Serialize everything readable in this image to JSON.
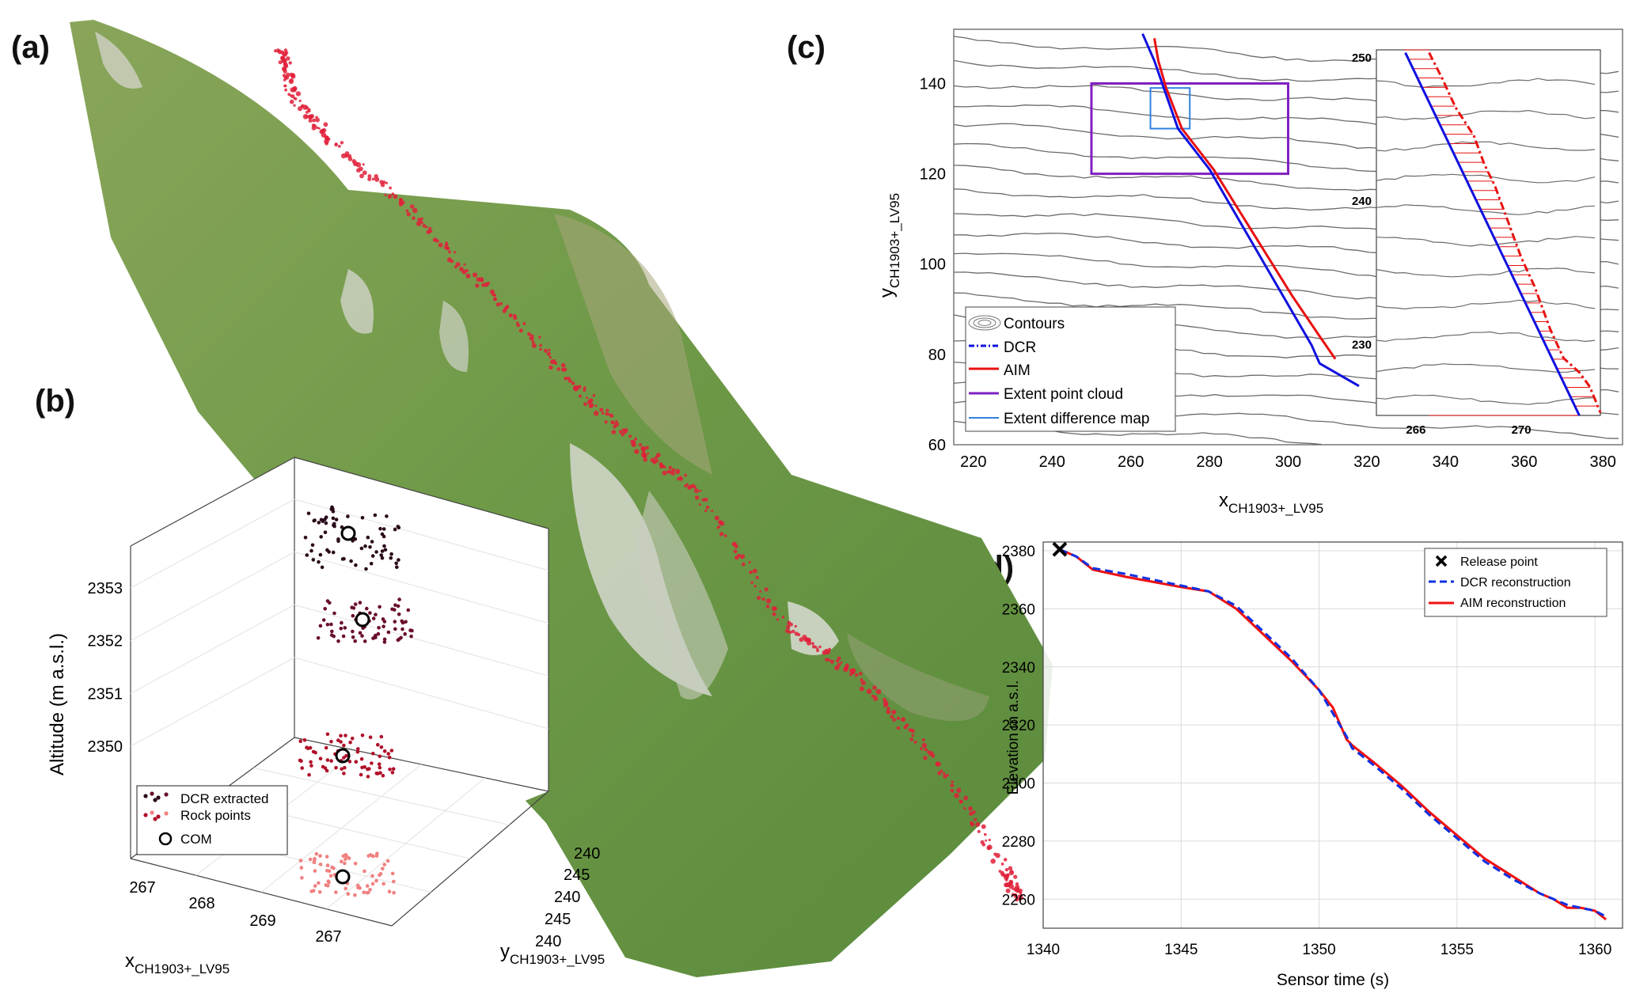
{
  "panels": {
    "a": "(a)",
    "b": "(b)",
    "c": "(c)",
    "d": "(d)"
  },
  "panel_a": {
    "image": "terrain-point-cloud-with-rock-trajectory",
    "trajectory_color": "#e0203a"
  },
  "chart_data": [
    {
      "id": "b",
      "type": "scatter",
      "title": "",
      "xlabel": "xCH1903+_LV95",
      "ylabel": "yCH1903+_LV95",
      "zlabel": "Altitude (m a.s.l.)",
      "x_ticks": [
        "267",
        "268",
        "269",
        "267"
      ],
      "y_ticks": [
        "240",
        "245",
        "240",
        "245",
        "240"
      ],
      "z_ticks": [
        2350,
        2351,
        2352,
        2353
      ],
      "legend": {
        "placement": "bottom-left",
        "entries": [
          "DCR extracted",
          "Rock points",
          "COM"
        ]
      },
      "series": [
        {
          "name": "DCR extracted",
          "colors": [
            "#2a0a1a",
            "#6a0f2a",
            "#b0102a",
            "#f08080"
          ]
        },
        {
          "name": "COM",
          "marker": "circle"
        }
      ],
      "clusters_altitude": [
        2353.3,
        2352.4,
        2350.6,
        2349.2
      ]
    },
    {
      "id": "c",
      "type": "line",
      "title": "",
      "xlabel": "xCH1903+_LV95",
      "ylabel": "yCH1903+_LV95",
      "xlim": [
        215,
        385
      ],
      "ylim": [
        60,
        152
      ],
      "x_ticks": [
        220,
        240,
        260,
        280,
        300,
        320,
        340,
        360,
        380
      ],
      "y_ticks": [
        60,
        80,
        100,
        120,
        140
      ],
      "legend": {
        "placement": "bottom-left",
        "entries": [
          "Contours",
          "DCR",
          "AIM",
          "Extent point cloud",
          "Extent difference map"
        ]
      },
      "series": [
        {
          "name": "DCR",
          "color": "#1010e0",
          "x": [
            263,
            266,
            268,
            272,
            280,
            290,
            300,
            306,
            308,
            318
          ],
          "y": [
            151,
            145,
            140,
            130,
            121,
            106,
            91,
            82,
            78,
            73
          ]
        },
        {
          "name": "AIM",
          "color": "#e81010",
          "x": [
            266,
            267,
            269,
            273,
            281,
            291,
            301,
            308,
            312
          ],
          "y": [
            150,
            145,
            139,
            130,
            121,
            107,
            93,
            84,
            79
          ]
        }
      ],
      "extent_point_cloud": {
        "x": [
          250,
          300
        ],
        "y": [
          120,
          140
        ],
        "color": "#8020c0"
      },
      "extent_difference_map": {
        "x": [
          265,
          275
        ],
        "y": [
          130,
          139
        ],
        "color": "#3080e0"
      },
      "inset": {
        "xlim": [
          264.5,
          273
        ],
        "ylim": [
          225,
          250.5
        ],
        "x_ticks": [
          266,
          270
        ],
        "y_ticks": [
          230,
          240,
          250
        ],
        "series": [
          {
            "name": "DCR",
            "color": "#1010e0",
            "x": [
              265.6,
              272.2
            ],
            "y": [
              250.3,
              225
            ]
          },
          {
            "name": "AIM",
            "color": "#e81010",
            "x": [
              266.5,
              267.0,
              267.5,
              268.2,
              268.6,
              269.0,
              269.5,
              270.0,
              270.5,
              271.1,
              271.6,
              272.2,
              272.6,
              273.0
            ],
            "y": [
              250.3,
              248.5,
              246.5,
              244.5,
              242.5,
              241.0,
              238.5,
              236.0,
              234.0,
              231.0,
              229.0,
              228.0,
              227.0,
              225.2
            ]
          }
        ]
      }
    },
    {
      "id": "d",
      "type": "line",
      "title": "",
      "xlabel": "Sensor time (s)",
      "ylabel": "Elevation m a.s.l.",
      "xlim": [
        1340,
        1361
      ],
      "ylim": [
        2250,
        2383
      ],
      "x_ticks": [
        1340,
        1345,
        1350,
        1355,
        1360
      ],
      "y_ticks": [
        2260,
        2280,
        2300,
        2320,
        2340,
        2360,
        2380
      ],
      "grid": true,
      "legend": {
        "placement": "top-right",
        "entries": [
          "Release point",
          "DCR reconstruction",
          "AIM reconstruction"
        ]
      },
      "release_point": {
        "x": 1340.6,
        "y": 2380.5
      },
      "series": [
        {
          "name": "DCR reconstruction",
          "style": "dashed",
          "color": "#1030e0",
          "x": [
            1340.6,
            1341.2,
            1341.8,
            1343,
            1345,
            1346,
            1347,
            1348,
            1349,
            1350,
            1350.5,
            1351,
            1351.2,
            1352,
            1353,
            1354,
            1355,
            1356,
            1357,
            1358,
            1358.5,
            1359,
            1359.5,
            1360,
            1360.4
          ],
          "y": [
            2380.5,
            2378,
            2374,
            2372,
            2368,
            2366,
            2361,
            2352,
            2343,
            2332,
            2324,
            2316,
            2312,
            2306,
            2298,
            2289,
            2281,
            2273,
            2267,
            2262,
            2260,
            2258,
            2257,
            2256,
            2254
          ]
        },
        {
          "name": "AIM reconstruction",
          "style": "solid",
          "color": "#f01010",
          "x": [
            1340.6,
            1341.2,
            1341.8,
            1343,
            1345,
            1346,
            1347,
            1348,
            1349,
            1350,
            1350.5,
            1351,
            1351.2,
            1352,
            1353,
            1354,
            1355,
            1356,
            1357,
            1358,
            1358.5,
            1359,
            1359.5,
            1360,
            1360.4
          ],
          "y": [
            2380.5,
            2378,
            2373.5,
            2371,
            2367.5,
            2366,
            2360,
            2351,
            2342,
            2332,
            2326,
            2315,
            2313,
            2307,
            2299,
            2290,
            2282,
            2274,
            2268,
            2262,
            2260,
            2257,
            2257,
            2256,
            2253
          ]
        }
      ]
    }
  ]
}
